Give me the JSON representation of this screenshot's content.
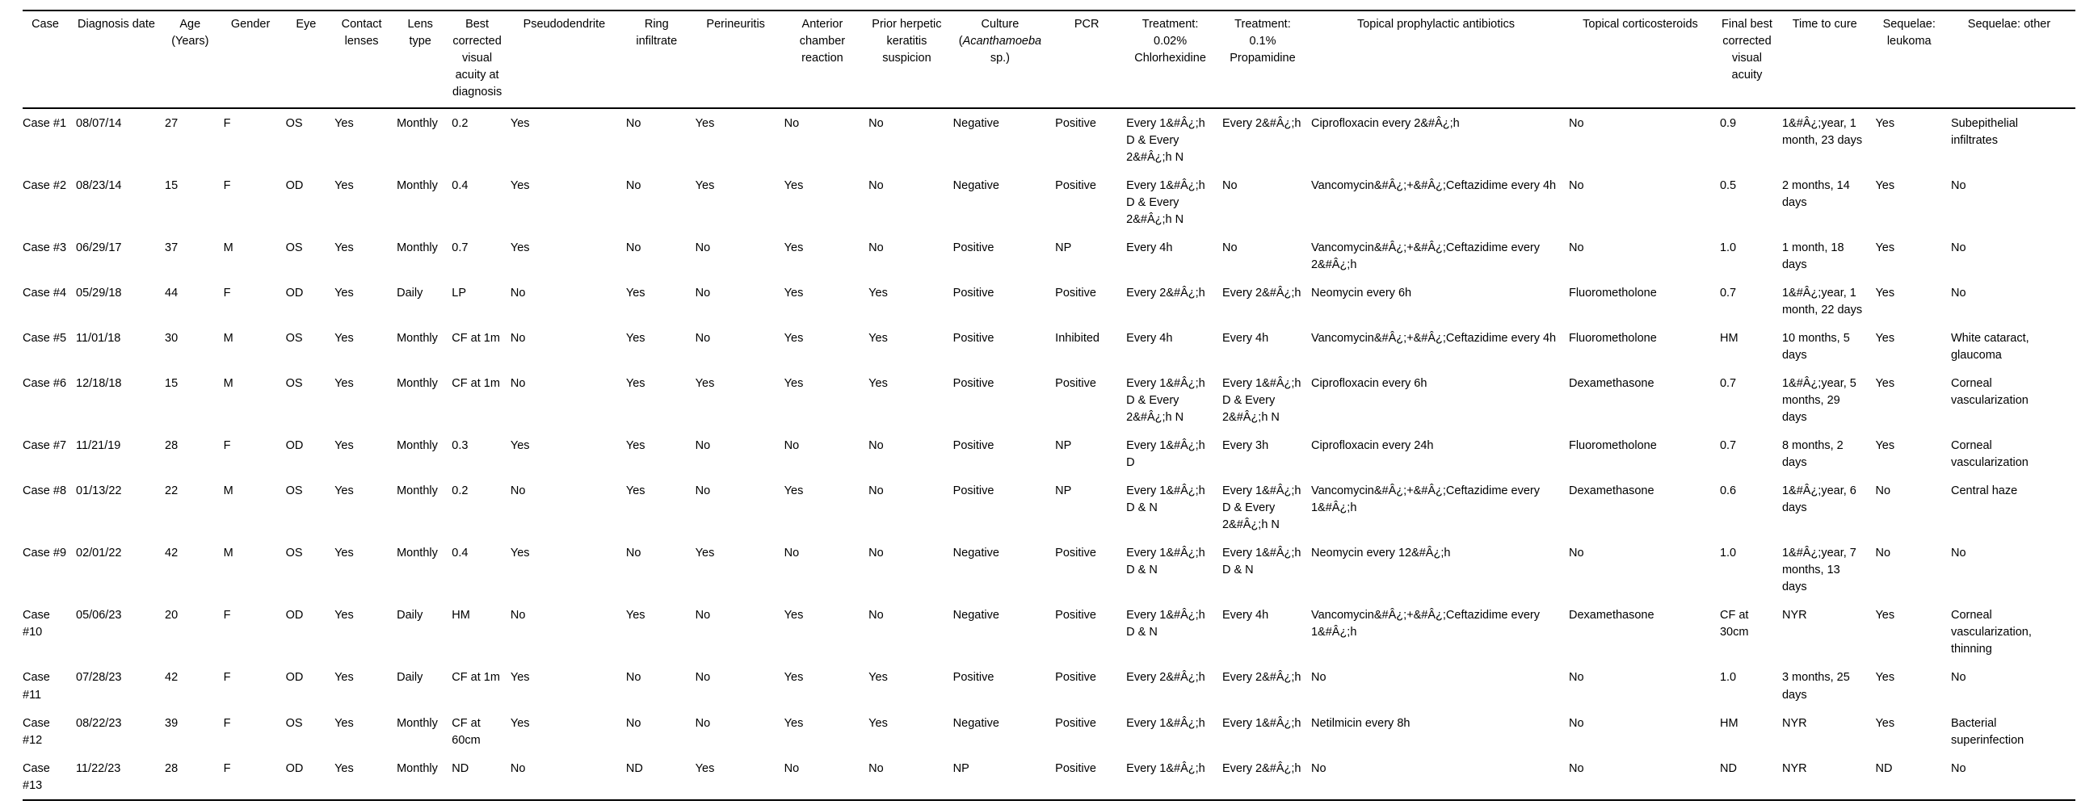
{
  "table": {
    "columns": [
      {
        "id": "case",
        "label": "Case"
      },
      {
        "id": "diagnosis-date",
        "label": "Diagnosis date"
      },
      {
        "id": "age",
        "label": "Age (Years)"
      },
      {
        "id": "gender",
        "label": "Gender"
      },
      {
        "id": "eye",
        "label": "Eye"
      },
      {
        "id": "contact-lenses",
        "label": "Contact lenses"
      },
      {
        "id": "lens-type",
        "label": "Lens type"
      },
      {
        "id": "bcva-at-diagnosis",
        "label": "Best corrected visual acuity at diagnosis"
      },
      {
        "id": "pseudodendrite",
        "label": "Pseudodendrite"
      },
      {
        "id": "ring-infiltrate",
        "label": "Ring infiltrate"
      },
      {
        "id": "perineuritis",
        "label": "Perineuritis"
      },
      {
        "id": "anterior-chamber-reaction",
        "label": "Anterior chamber reaction"
      },
      {
        "id": "prior-herpetic-keratitis-suspicion",
        "label": "Prior herpetic keratitis suspicion"
      },
      {
        "id": "culture",
        "label": "Culture (Acanthamoeba sp.)",
        "italic": "Acanthamoeba"
      },
      {
        "id": "pcr",
        "label": "PCR"
      },
      {
        "id": "treatment-chlorhexidine",
        "label": "Treatment: 0.02% Chlorhexidine"
      },
      {
        "id": "treatment-propamidine",
        "label": "Treatment: 0.1% Propamidine"
      },
      {
        "id": "topical-prophylactic-antibiotics",
        "label": "Topical prophylactic antibiotics"
      },
      {
        "id": "topical-corticosteroids",
        "label": "Topical corticosteroids"
      },
      {
        "id": "final-bcva",
        "label": "Final best corrected visual acuity"
      },
      {
        "id": "time-to-cure",
        "label": "Time to cure"
      },
      {
        "id": "sequelae-leukoma",
        "label": "Sequelae: leukoma"
      },
      {
        "id": "sequelae-other",
        "label": "Sequelae: other"
      }
    ],
    "rows": [
      [
        "Case #1",
        "08/07/14",
        "27",
        "F",
        "OS",
        "Yes",
        "Monthly",
        "0.2",
        "Yes",
        "No",
        "Yes",
        "No",
        "No",
        "Negative",
        "Positive",
        "Every 1&#Â¿;h D & Every 2&#Â¿;h N",
        "Every 2&#Â¿;h",
        "Ciprofloxacin every 2&#Â¿;h",
        "No",
        "0.9",
        "1&#Â¿;year, 1 month, 23 days",
        "Yes",
        "Subepithelial infiltrates"
      ],
      [
        "Case #2",
        "08/23/14",
        "15",
        "F",
        "OD",
        "Yes",
        "Monthly",
        "0.4",
        "Yes",
        "No",
        "Yes",
        "Yes",
        "No",
        "Negative",
        "Positive",
        "Every 1&#Â¿;h D & Every 2&#Â¿;h N",
        "No",
        "Vancomycin&#Â¿;+&#Â¿;Ceftazidime every 4h",
        "No",
        "0.5",
        "2 months, 14 days",
        "Yes",
        "No"
      ],
      [
        "Case #3",
        "06/29/17",
        "37",
        "M",
        "OS",
        "Yes",
        "Monthly",
        "0.7",
        "Yes",
        "No",
        "No",
        "Yes",
        "No",
        "Positive",
        "NP",
        "Every 4h",
        "No",
        "Vancomycin&#Â¿;+&#Â¿;Ceftazidime every 2&#Â¿;h",
        "No",
        "1.0",
        "1 month, 18 days",
        "Yes",
        "No"
      ],
      [
        "Case #4",
        "05/29/18",
        "44",
        "F",
        "OD",
        "Yes",
        "Daily",
        "LP",
        "No",
        "Yes",
        "No",
        "Yes",
        "Yes",
        "Positive",
        "Positive",
        "Every 2&#Â¿;h",
        "Every 2&#Â¿;h",
        "Neomycin every 6h",
        "Fluorometholone",
        "0.7",
        "1&#Â¿;year, 1 month, 22 days",
        "Yes",
        "No"
      ],
      [
        "Case #5",
        "11/01/18",
        "30",
        "M",
        "OS",
        "Yes",
        "Monthly",
        "CF at 1m",
        "No",
        "Yes",
        "No",
        "Yes",
        "Yes",
        "Positive",
        "Inhibited",
        "Every 4h",
        "Every 4h",
        "Vancomycin&#Â¿;+&#Â¿;Ceftazidime every 4h",
        "Fluorometholone",
        "HM",
        "10 months, 5 days",
        "Yes",
        "White cataract, glaucoma"
      ],
      [
        "Case #6",
        "12/18/18",
        "15",
        "M",
        "OS",
        "Yes",
        "Monthly",
        "CF at 1m",
        "No",
        "Yes",
        "Yes",
        "Yes",
        "Yes",
        "Positive",
        "Positive",
        "Every 1&#Â¿;h D & Every 2&#Â¿;h N",
        "Every 1&#Â¿;h D & Every 2&#Â¿;h N",
        "Ciprofloxacin every 6h",
        "Dexamethasone",
        "0.7",
        "1&#Â¿;year, 5 months, 29 days",
        "Yes",
        "Corneal vascularization"
      ],
      [
        "Case #7",
        "11/21/19",
        "28",
        "F",
        "OD",
        "Yes",
        "Monthly",
        "0.3",
        "Yes",
        "Yes",
        "No",
        "No",
        "No",
        "Positive",
        "NP",
        "Every 1&#Â¿;h D",
        "Every 3h",
        "Ciprofloxacin every 24h",
        "Fluorometholone",
        "0.7",
        "8 months, 2 days",
        "Yes",
        "Corneal vascularization"
      ],
      [
        "Case #8",
        "01/13/22",
        "22",
        "M",
        "OS",
        "Yes",
        "Monthly",
        "0.2",
        "No",
        "Yes",
        "No",
        "Yes",
        "No",
        "Positive",
        "NP",
        "Every 1&#Â¿;h D & N",
        "Every 1&#Â¿;h D & Every 2&#Â¿;h N",
        "Vancomycin&#Â¿;+&#Â¿;Ceftazidime every 1&#Â¿;h",
        "Dexamethasone",
        "0.6",
        "1&#Â¿;year, 6 days",
        "No",
        "Central haze"
      ],
      [
        "Case #9",
        "02/01/22",
        "42",
        "M",
        "OS",
        "Yes",
        "Monthly",
        "0.4",
        "Yes",
        "No",
        "Yes",
        "No",
        "No",
        "Negative",
        "Positive",
        "Every 1&#Â¿;h D & N",
        "Every 1&#Â¿;h D & N",
        "Neomycin every 12&#Â¿;h",
        "No",
        "1.0",
        "1&#Â¿;year, 7 months, 13 days",
        "No",
        "No"
      ],
      [
        "Case #10",
        "05/06/23",
        "20",
        "F",
        "OD",
        "Yes",
        "Daily",
        "HM",
        "No",
        "Yes",
        "No",
        "Yes",
        "No",
        "Negative",
        "Positive",
        "Every 1&#Â¿;h D & N",
        "Every 4h",
        "Vancomycin&#Â¿;+&#Â¿;Ceftazidime every 1&#Â¿;h",
        "Dexamethasone",
        "CF at 30cm",
        "NYR",
        "Yes",
        "Corneal vascularization, thinning"
      ],
      [
        "Case #11",
        "07/28/23",
        "42",
        "F",
        "OD",
        "Yes",
        "Daily",
        "CF at 1m",
        "Yes",
        "No",
        "No",
        "Yes",
        "Yes",
        "Positive",
        "Positive",
        "Every 2&#Â¿;h",
        "Every 2&#Â¿;h",
        "No",
        "No",
        "1.0",
        "3 months, 25 days",
        "Yes",
        "No"
      ],
      [
        "Case #12",
        "08/22/23",
        "39",
        "F",
        "OS",
        "Yes",
        "Monthly",
        "CF at 60cm",
        "Yes",
        "No",
        "No",
        "Yes",
        "Yes",
        "Negative",
        "Positive",
        "Every 1&#Â¿;h",
        "Every 1&#Â¿;h",
        "Netilmicin every 8h",
        "No",
        "HM",
        "NYR",
        "Yes",
        "Bacterial superinfection"
      ],
      [
        "Case #13",
        "11/22/23",
        "28",
        "F",
        "OD",
        "Yes",
        "Monthly",
        "ND",
        "No",
        "ND",
        "Yes",
        "No",
        "No",
        "NP",
        "Positive",
        "Every 1&#Â¿;h",
        "Every 2&#Â¿;h",
        "No",
        "No",
        "ND",
        "NYR",
        "ND",
        "No"
      ]
    ]
  }
}
